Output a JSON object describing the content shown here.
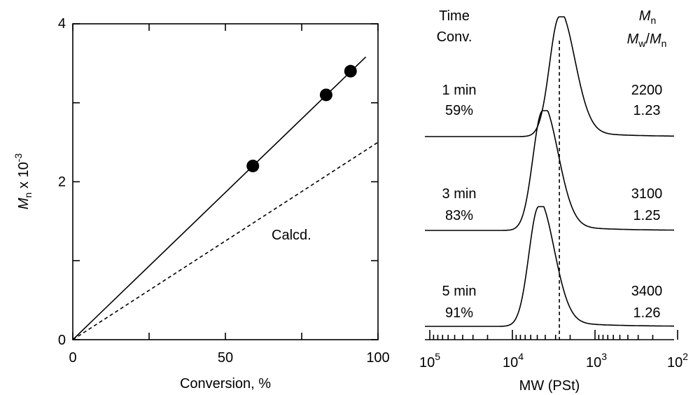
{
  "chart_data": [
    {
      "type": "scatter",
      "xlabel": "Conversion, %",
      "ylabel": "M",
      "ylabel_sub": "n",
      "ylabel_suffix": " x 10",
      "ylabel_sup": "-3",
      "xlim": [
        0,
        100
      ],
      "ylim": [
        0,
        4
      ],
      "xticks": [
        "0",
        "50",
        "100"
      ],
      "yticks": [
        "0",
        "2",
        "4"
      ],
      "points": {
        "x": [
          59,
          83,
          91
        ],
        "y": [
          2.2,
          3.1,
          3.4
        ]
      },
      "fit_line": {
        "x": [
          0,
          96
        ],
        "y": [
          0,
          3.58
        ]
      },
      "calcd_line": {
        "x": [
          0,
          100
        ],
        "y": [
          0,
          2.5
        ]
      },
      "annotation": "Calcd."
    },
    {
      "type": "line",
      "xlabel": "MW (PSt)",
      "x_scale": "log",
      "x_reversed": true,
      "xticks": [
        {
          "base": "10",
          "exp": "5"
        },
        {
          "base": "10",
          "exp": "4"
        },
        {
          "base": "10",
          "exp": "3"
        },
        {
          "base": "10",
          "exp": "2"
        }
      ],
      "left_header": [
        "Time",
        "Conv."
      ],
      "right_header": {
        "mn_main": "M",
        "mn_sub": "n",
        "mw_main": "M",
        "mw_sub": "w",
        "slash": "/",
        "mn2_main": "M",
        "mn2_sub": "n"
      },
      "reference_mw": 2700,
      "series": [
        {
          "time": "1 min",
          "conv": "59%",
          "mn": "2200",
          "pdi": "1.23",
          "peak_mw": 2700
        },
        {
          "time": "3 min",
          "conv": "83%",
          "mn": "3100",
          "pdi": "1.25",
          "peak_mw": 4300
        },
        {
          "time": "5 min",
          "conv": "91%",
          "mn": "3400",
          "pdi": "1.26",
          "peak_mw": 4800
        }
      ]
    }
  ]
}
